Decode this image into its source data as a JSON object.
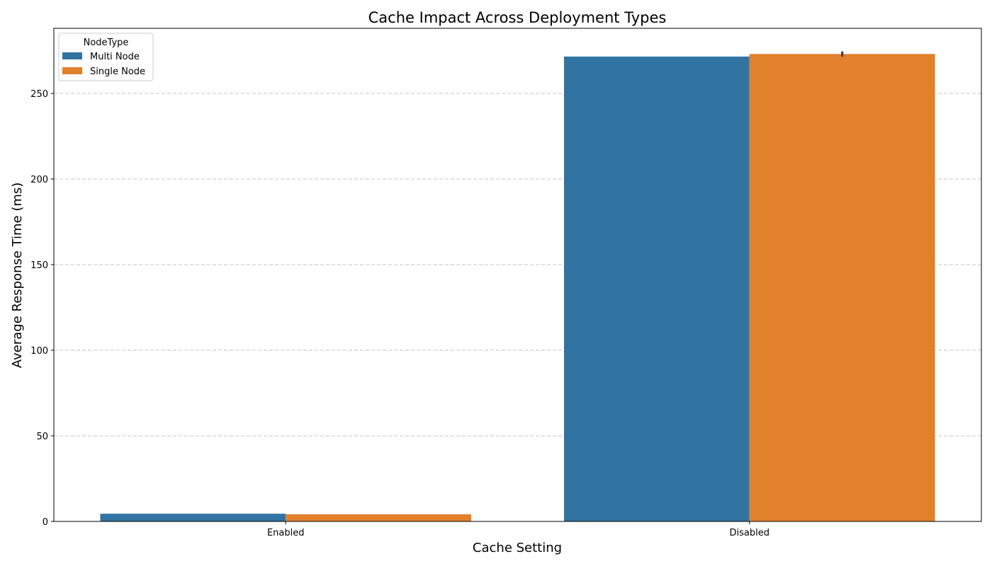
{
  "chart_data": {
    "type": "bar",
    "title": "Cache Impact Across Deployment Types",
    "xlabel": "Cache Setting",
    "ylabel": "Average Response Time (ms)",
    "categories": [
      "Enabled",
      "Disabled"
    ],
    "series": [
      {
        "name": "Multi Node",
        "color": "#3274a1",
        "values": [
          4.5,
          271.5
        ]
      },
      {
        "name": "Single Node",
        "color": "#e1812c",
        "values": [
          4.2,
          273.0
        ],
        "error_bars": [
          null,
          [
            271.5,
            274.5
          ]
        ]
      }
    ],
    "ylim": [
      0,
      288
    ],
    "yticks": [
      0,
      50,
      100,
      150,
      200,
      250
    ],
    "grid": "y-dashed",
    "legend": {
      "title": "NodeType",
      "placement": "top-left"
    }
  }
}
